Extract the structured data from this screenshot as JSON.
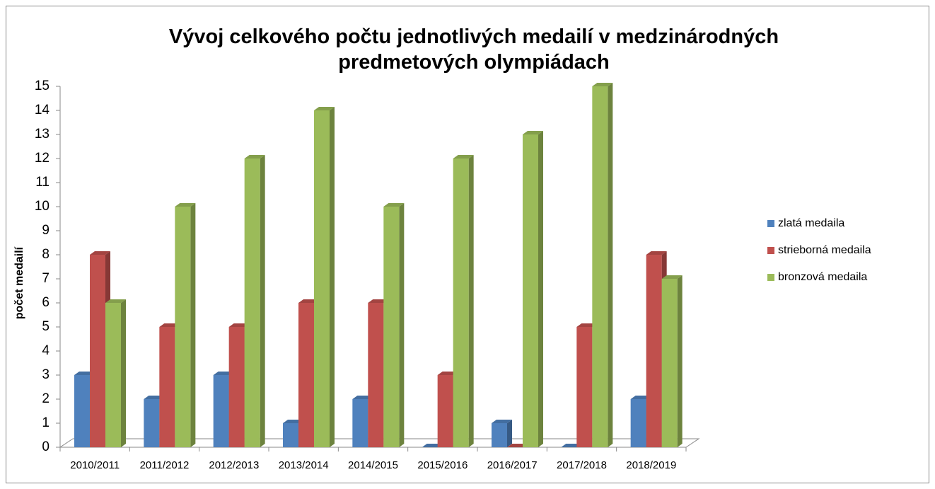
{
  "chart_data": {
    "type": "bar3d",
    "title": "Vývoj celkového počtu jednotlivých medailí v medzinárodných predmetových olympiádach",
    "y_label": "počet medailí",
    "categories": [
      "2010/2011",
      "2011/2012",
      "2012/2013",
      "2013/2014",
      "2014/2015",
      "2015/2016",
      "2016/2017",
      "2017/2018",
      "2018/2019"
    ],
    "series": [
      {
        "name": "zlatá medaila",
        "color": "#4f81bd",
        "values": [
          3,
          2,
          3,
          1,
          2,
          0,
          1,
          0,
          2
        ]
      },
      {
        "name": "strieborná medaila",
        "color": "#c0504d",
        "values": [
          8,
          5,
          5,
          6,
          6,
          3,
          0,
          5,
          8
        ]
      },
      {
        "name": "bronzová medaila",
        "color": "#9bbb59",
        "values": [
          6,
          10,
          12,
          14,
          10,
          12,
          13,
          15,
          7
        ]
      }
    ],
    "ylim": [
      0,
      15
    ],
    "yticks": [
      0,
      1,
      2,
      3,
      4,
      5,
      6,
      7,
      8,
      9,
      10,
      11,
      12,
      13,
      14,
      15
    ],
    "legend": "right"
  }
}
